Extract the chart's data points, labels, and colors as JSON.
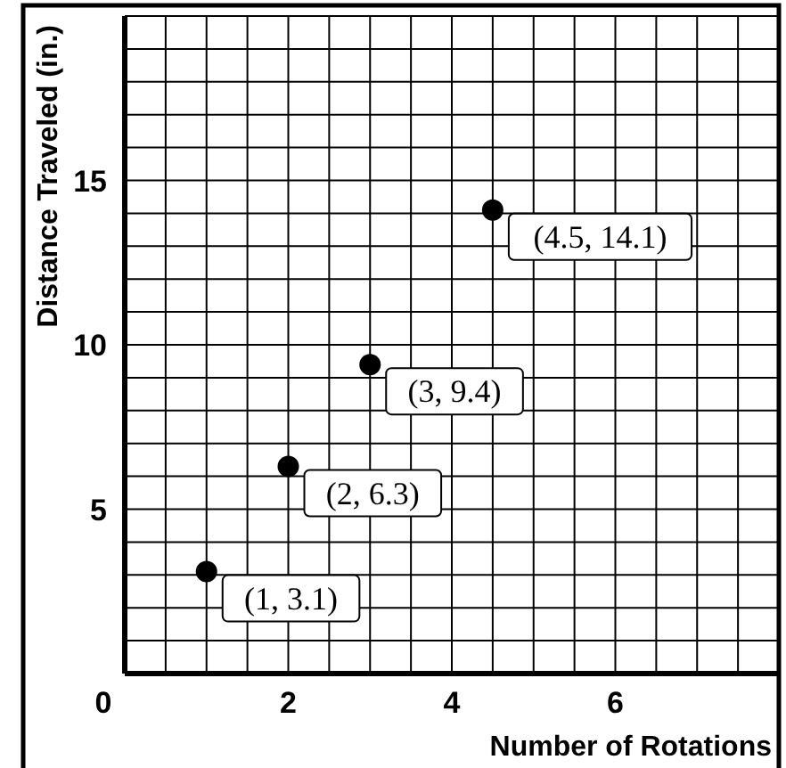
{
  "chart_data": {
    "type": "scatter",
    "xlabel": "Number of Rotations",
    "ylabel": "Distance Traveled (in.)",
    "x": [
      1,
      2,
      3,
      4.5
    ],
    "values": [
      3.1,
      6.3,
      9.4,
      14.1
    ],
    "color": "#000000",
    "marker": "circle",
    "grid": true,
    "xlim": [
      0,
      8
    ],
    "xticks": [
      0,
      2,
      4,
      6
    ],
    "ylim": [
      0,
      20
    ],
    "yticks": [
      5,
      10,
      15
    ],
    "annotations": [
      {
        "text": "(1, 3.1)",
        "x": 1,
        "y": 3.1
      },
      {
        "text": "(2, 6.3)",
        "x": 2,
        "y": 6.3
      },
      {
        "text": "(3, 9.4)",
        "x": 3,
        "y": 9.4
      },
      {
        "text": "(4.5, 14.1)",
        "x": 4.5,
        "y": 14.1
      }
    ]
  }
}
